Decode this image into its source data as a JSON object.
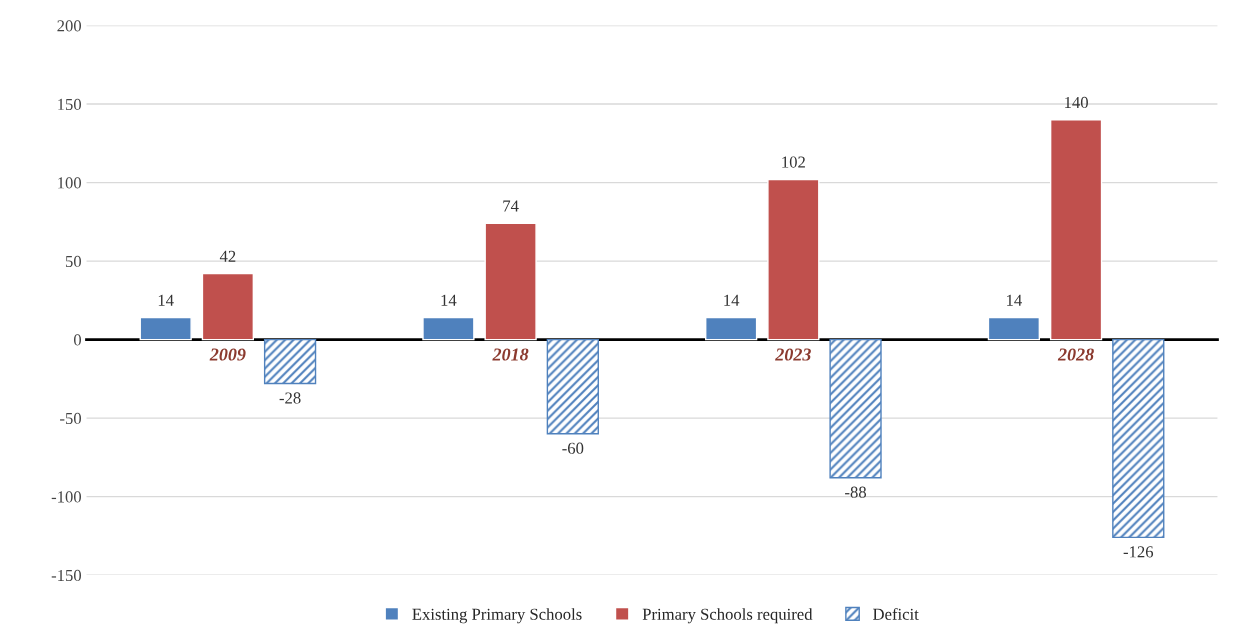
{
  "chart_data": {
    "type": "bar",
    "categories": [
      "2009",
      "2018",
      "2023",
      "2028"
    ],
    "series": [
      {
        "name": "Existing Primary Schools",
        "color": "#4f81bd",
        "values": [
          14,
          14,
          14,
          14
        ]
      },
      {
        "name": "Primary Schools required",
        "color": "#c0504d",
        "values": [
          42,
          74,
          102,
          140
        ]
      },
      {
        "name": "Deficit",
        "color": "#4f81bd",
        "values": [
          -28,
          -60,
          -88,
          -126
        ]
      }
    ],
    "ylim": [
      -150,
      200
    ],
    "yticks": [
      -150,
      -100,
      -50,
      0,
      50,
      100,
      150,
      200
    ],
    "grid": "y",
    "legend": "bottom",
    "data_labels": true
  }
}
